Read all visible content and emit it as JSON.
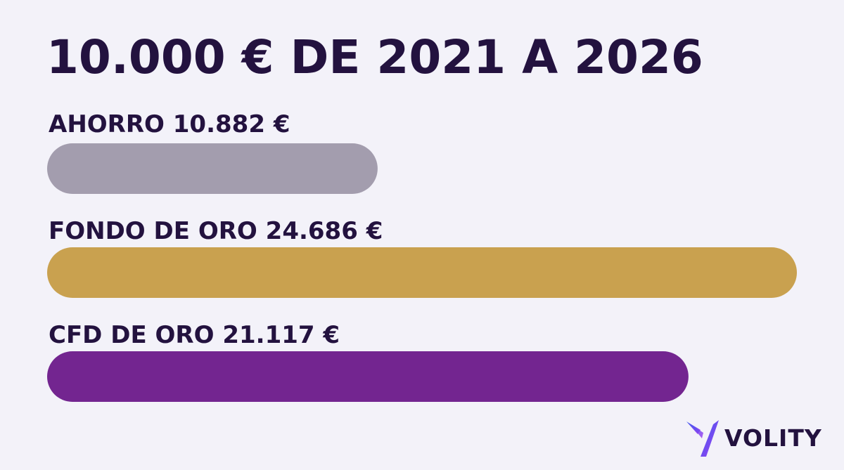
{
  "chart_data": {
    "type": "bar",
    "orientation": "horizontal",
    "title": "10.000 € DE 2021 A 2026",
    "categories": [
      "AHORRO",
      "FONDO DE ORO",
      "CFD DE ORO"
    ],
    "labels": [
      "AHORRO 10.882 €",
      "FONDO DE ORO 24.686 €",
      "CFD DE ORO 21.117 €"
    ],
    "values": [
      10882,
      24686,
      21117
    ],
    "colors": [
      "#a39dae",
      "#c9a14f",
      "#732590"
    ],
    "xlim": [
      0,
      24686
    ],
    "grid": false,
    "legend": "none"
  },
  "brand": {
    "name": "VOLITY",
    "logo_colors": [
      "#3d5cf0",
      "#a33df0"
    ]
  }
}
